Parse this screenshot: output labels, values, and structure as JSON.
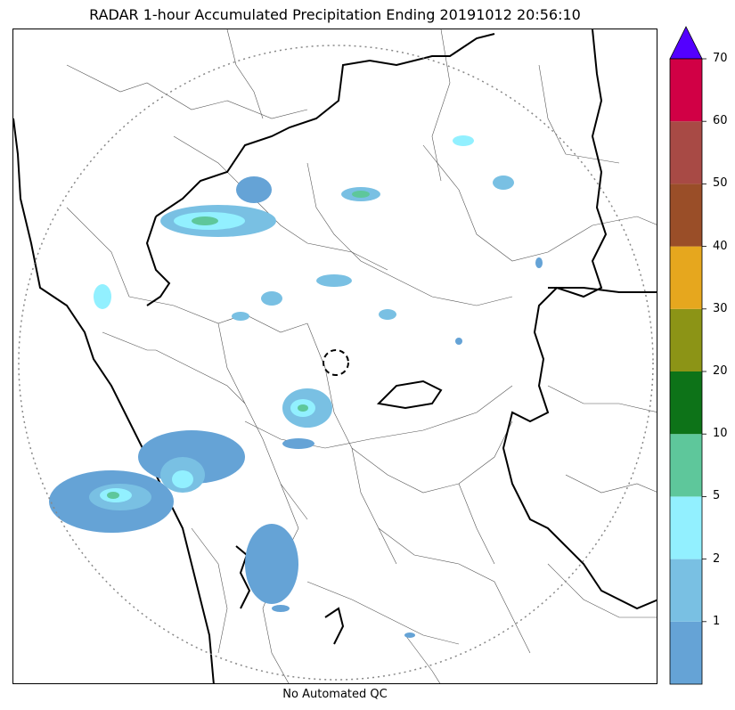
{
  "title": "RADAR 1-hour Accumulated Precipitation Ending 20191012 20:56:10",
  "footer": "No Automated QC",
  "colorbar": {
    "bins": [
      {
        "from": 0,
        "to": 1,
        "color": "#65a3d6"
      },
      {
        "from": 1,
        "to": 2,
        "color": "#79c0e3"
      },
      {
        "from": 2,
        "to": 5,
        "color": "#92f0ff"
      },
      {
        "from": 5,
        "to": 10,
        "color": "#5ec79b"
      },
      {
        "from": 10,
        "to": 20,
        "color": "#0d7318"
      },
      {
        "from": 20,
        "to": 30,
        "color": "#8c9416"
      },
      {
        "from": 30,
        "to": 40,
        "color": "#e6a71e"
      },
      {
        "from": 40,
        "to": 50,
        "color": "#9a4e28"
      },
      {
        "from": 50,
        "to": 60,
        "color": "#a84a45"
      },
      {
        "from": 60,
        "to": 70,
        "color": "#d10045"
      }
    ],
    "extend_color": "#5300ff",
    "tick_labels": [
      "1",
      "2",
      "5",
      "10",
      "20",
      "30",
      "40",
      "50",
      "60",
      "70"
    ]
  },
  "map": {
    "radar_range_ring": "dotted",
    "center_marker": "dashed-circle"
  }
}
